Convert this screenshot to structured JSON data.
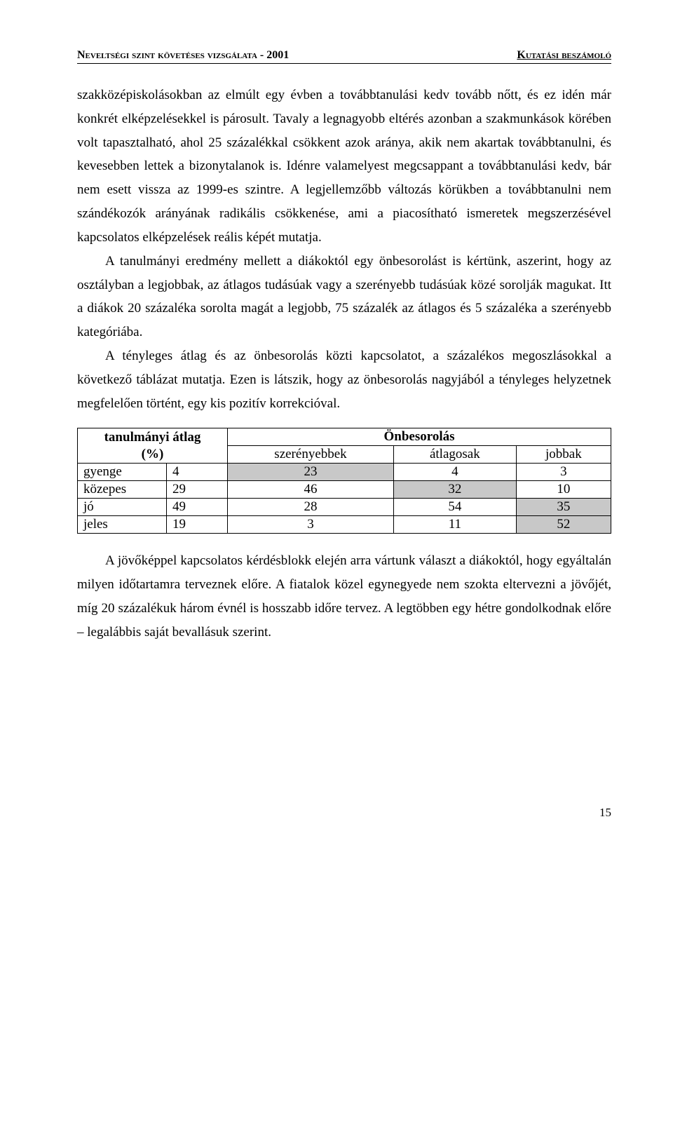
{
  "header": {
    "left": "Neveltségi szint követéses vizsgálata - 2001",
    "right": "Kutatási beszámoló"
  },
  "paragraphs": {
    "p1": "szakközépiskolásokban az elmúlt egy évben a továbbtanulási kedv tovább nőtt, és ez idén már konkrét elképzelésekkel is párosult. Tavaly a legnagyobb eltérés azonban a szakmunkások körében volt tapasztalható, ahol 25 százalékkal csökkent azok aránya, akik nem akartak továbbtanulni, és kevesebben lettek a bizonytalanok is. Idénre valamelyest megcsappant a továbbtanulási kedv, bár nem esett vissza az 1999-es szintre. A legjellemzőbb változás körükben a továbbtanulni nem szándékozók arányának radikális csökkenése, ami a piacosítható ismeretek megszerzésével kapcsolatos elképzelések reális képét mutatja.",
    "p2": "A tanulmányi eredmény mellett a diákoktól egy önbesorolást is kértünk, aszerint, hogy az osztályban a legjobbak, az átlagos tudásúak vagy a szerényebb tudásúak közé sorolják magukat. Itt a diákok 20 százaléka sorolta magát a legjobb, 75 százalék az átlagos és 5 százaléka a szerényebb kategóriába.",
    "p3": "A tényleges átlag és az önbesorolás közti kapcsolatot, a százalékos megoszlásokkal a következő táblázat mutatja. Ezen is látszik, hogy az önbesorolás nagyjából a tényleges helyzetnek megfelelően történt, egy kis pozitív korrekcióval.",
    "p4": "A jövőképpel kapcsolatos kérdésblokk elején arra vártunk választ a diákoktól, hogy egyáltalán milyen időtartamra terveznek előre. A fiatalok közel egynegyede nem szokta eltervezni a jövőjét, míg 20 százalékuk három évnél is hosszabb időre tervez. A legtöbben egy hétre gondolkodnak előre – legalábbis saját bevallásuk szerint."
  },
  "table": {
    "group_header_left": "tanulmányi átlag (%)",
    "group_header_right": "Önbesorolás",
    "columns": [
      "szerényebbek",
      "átlagosak",
      "jobbak"
    ],
    "rows": [
      {
        "label": "gyenge",
        "pct": "4",
        "cells": [
          "23",
          "4",
          "3"
        ],
        "shaded": [
          true,
          false,
          false
        ]
      },
      {
        "label": "közepes",
        "pct": "29",
        "cells": [
          "46",
          "32",
          "10"
        ],
        "shaded": [
          false,
          true,
          false
        ]
      },
      {
        "label": "jó",
        "pct": "49",
        "cells": [
          "28",
          "54",
          "35"
        ],
        "shaded": [
          false,
          false,
          true
        ]
      },
      {
        "label": "jeles",
        "pct": "19",
        "cells": [
          "3",
          "11",
          "52"
        ],
        "shaded": [
          false,
          false,
          true
        ]
      }
    ],
    "shaded_color": "#c8c8c8"
  },
  "page_number": "15"
}
